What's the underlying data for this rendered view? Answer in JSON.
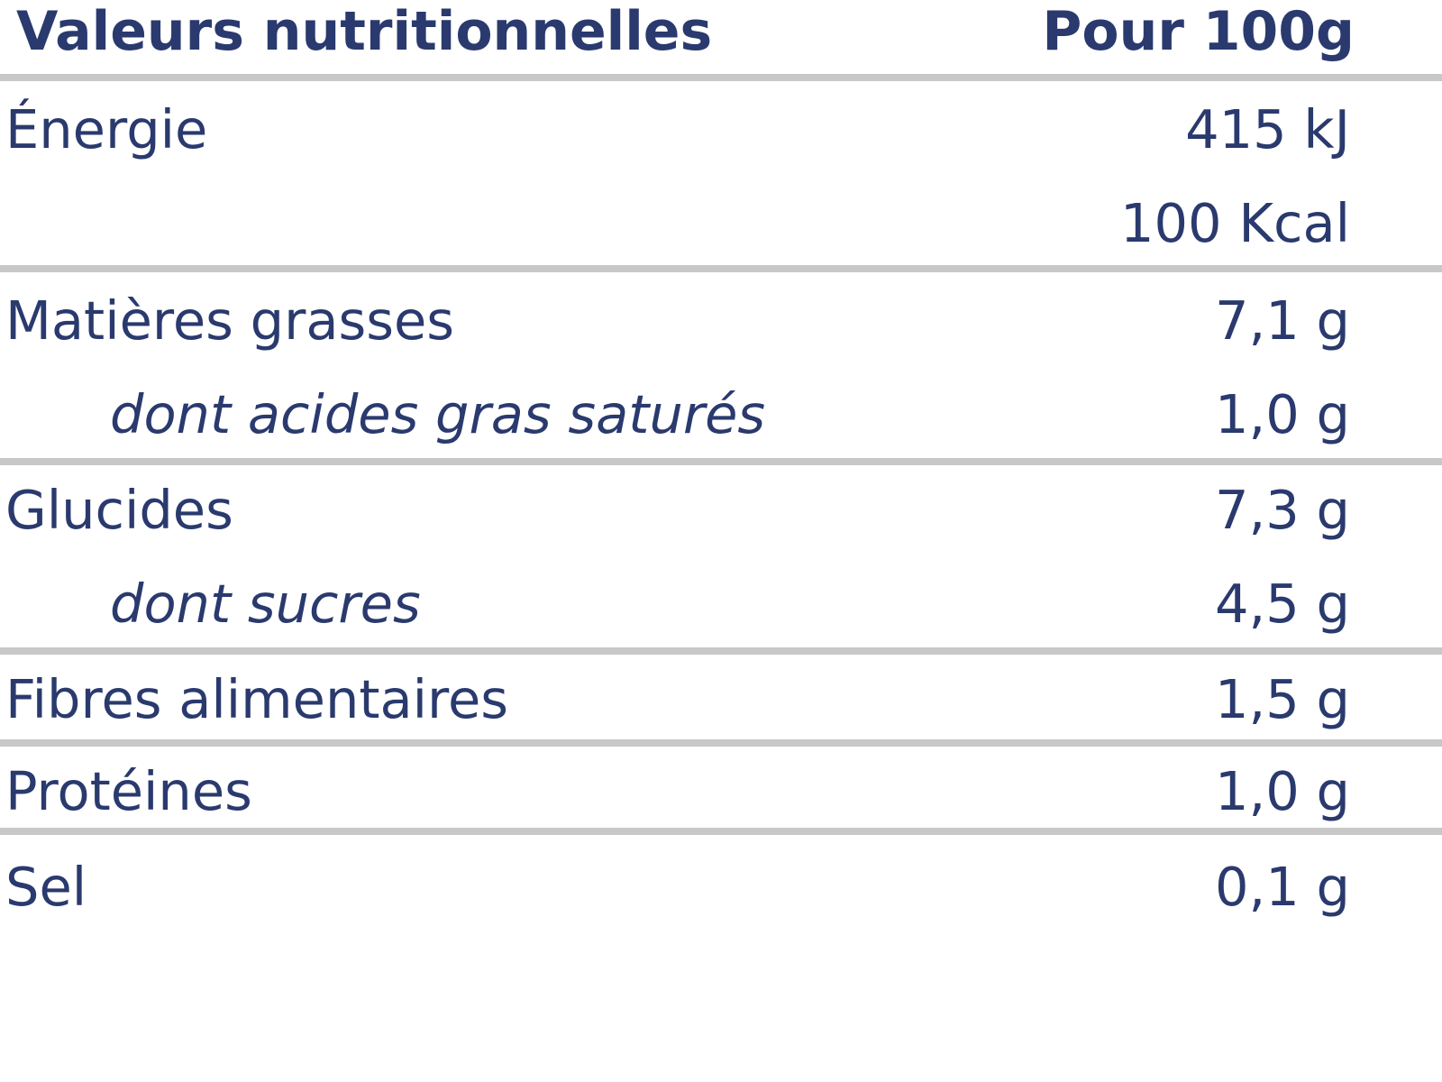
{
  "header": {
    "label": "Valeurs nutritionnelles",
    "value": "Pour 100g"
  },
  "rows": [
    {
      "label": "Énergie",
      "value": "415 kJ"
    },
    {
      "label": "",
      "value": "100 Kcal"
    },
    {
      "label": "Matières grasses",
      "value": "7,1 g"
    },
    {
      "label": "dont acides gras saturés",
      "value": "1,0 g"
    },
    {
      "label": "Glucides",
      "value": "7,3 g"
    },
    {
      "label": "dont sucres",
      "value": "4,5 g"
    },
    {
      "label": "Fibres alimentaires",
      "value": "1,5 g"
    },
    {
      "label": "Protéines",
      "value": "1,0 g"
    },
    {
      "label": "Sel",
      "value": "0,1 g"
    }
  ],
  "colors": {
    "text": "#2a3a6e",
    "separator": "#c8c8c8",
    "background": "#ffffff"
  }
}
